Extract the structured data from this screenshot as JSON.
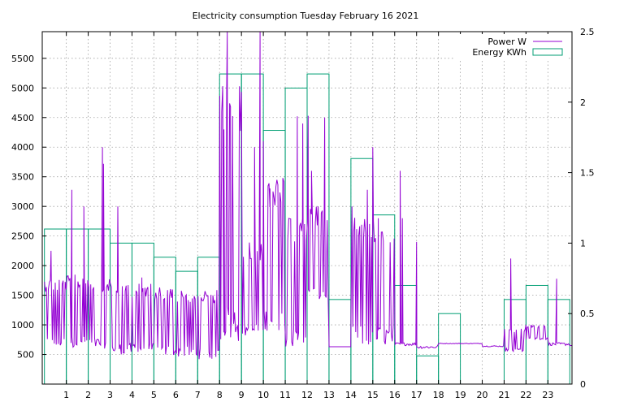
{
  "chart_data": {
    "type": "line",
    "title": "Electricity consumption Tuesday February 16 2021",
    "x_ticks": [
      1,
      2,
      3,
      4,
      5,
      6,
      7,
      8,
      9,
      10,
      11,
      12,
      13,
      14,
      15,
      16,
      17,
      18,
      19,
      20,
      21,
      22,
      23
    ],
    "xlim": [
      -0.1,
      24.1
    ],
    "y_ticks": [
      500,
      1000,
      1500,
      2000,
      2500,
      3000,
      3500,
      4000,
      4500,
      5000,
      5500
    ],
    "ylim": [
      0,
      5950
    ],
    "y2_ticks": [
      0,
      0.5,
      1,
      1.5,
      2,
      2.5
    ],
    "y2_tick_labels": [
      "0",
      "0.5",
      "1",
      "1.5",
      "2",
      "2.5"
    ],
    "y2lim": [
      0,
      2.5
    ],
    "grid": true,
    "legend_position": "top-right",
    "colors": {
      "power": "#9400d3",
      "energy": "#009e73"
    },
    "series": [
      {
        "name": "Power W",
        "axis": "left",
        "style": "line",
        "hourly_level": [
          [
            600,
            1800
          ],
          [
            620,
            1850
          ],
          [
            600,
            1800
          ],
          [
            500,
            1750
          ],
          [
            520,
            1700
          ],
          [
            480,
            1650
          ],
          [
            460,
            1600
          ],
          [
            420,
            1600
          ],
          [
            700,
            5100
          ],
          [
            800,
            2400
          ],
          [
            900,
            3500
          ],
          [
            600,
            2800
          ],
          [
            1400,
            3000
          ],
          [
            630,
            630
          ],
          [
            640,
            2900
          ],
          [
            650,
            2800
          ],
          [
            650,
            700
          ],
          [
            600,
            650
          ],
          [
            680,
            690
          ],
          [
            680,
            690
          ],
          [
            630,
            650
          ],
          [
            550,
            950
          ],
          [
            750,
            1000
          ],
          [
            650,
            700
          ]
        ],
        "spikes": [
          [
            0.3,
            2250
          ],
          [
            1.25,
            3280
          ],
          [
            1.8,
            3000
          ],
          [
            2.65,
            4000
          ],
          [
            2.7,
            3720
          ],
          [
            3.35,
            3000
          ],
          [
            4.45,
            1800
          ],
          [
            8.2,
            4300
          ],
          [
            8.35,
            5950
          ],
          [
            8.5,
            4680
          ],
          [
            8.6,
            3800
          ],
          [
            9.6,
            4000
          ],
          [
            9.85,
            5950
          ],
          [
            10.0,
            4100
          ],
          [
            10.3,
            3000
          ],
          [
            11.55,
            4520
          ],
          [
            11.8,
            4400
          ],
          [
            12.05,
            4530
          ],
          [
            12.2,
            3600
          ],
          [
            12.5,
            3000
          ],
          [
            12.8,
            4500
          ],
          [
            14.05,
            3000
          ],
          [
            14.75,
            3280
          ],
          [
            15.0,
            4000
          ],
          [
            15.25,
            2800
          ],
          [
            16.25,
            3600
          ],
          [
            16.35,
            2800
          ],
          [
            17.0,
            2400
          ],
          [
            21.3,
            2120
          ],
          [
            22.0,
            1000
          ],
          [
            23.4,
            1780
          ]
        ]
      },
      {
        "name": "Energy KWh",
        "axis": "right",
        "style": "steps",
        "x": [
          0,
          1,
          2,
          3,
          4,
          5,
          6,
          7,
          8,
          9,
          10,
          11,
          12,
          13,
          14,
          15,
          16,
          17,
          18,
          19,
          20,
          21,
          22,
          23
        ],
        "values": [
          1.1,
          1.1,
          1.1,
          1.0,
          1.0,
          0.9,
          0.8,
          0.9,
          2.2,
          2.2,
          1.8,
          2.1,
          2.2,
          0.6,
          1.6,
          1.2,
          0.7,
          0.2,
          0.5,
          0.0,
          0.0,
          0.6,
          0.7,
          0.6
        ]
      }
    ]
  }
}
